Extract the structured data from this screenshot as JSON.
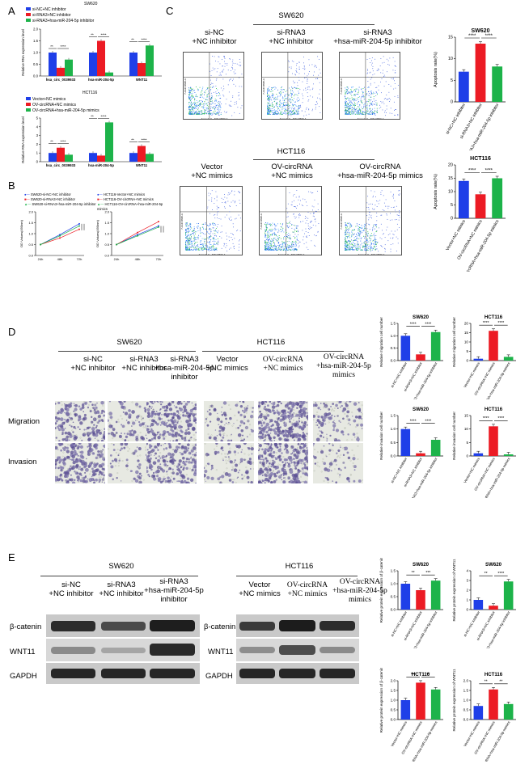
{
  "panels": {
    "A": "A",
    "B": "B",
    "C": "C",
    "D": "D",
    "E": "E"
  },
  "colors": {
    "blue": "#1f3fe8",
    "red": "#ec1b24",
    "green": "#1db34a"
  },
  "panelA": {
    "top_title": "SW620",
    "top_legend": [
      "si-NC+NC inhibitor",
      "si-RNA3+NC inhibitor",
      "si-RNA3+hsa-miR-204-5p inhibitor"
    ],
    "bottom_title": "HCT116",
    "bottom_legend": [
      "Vector+NC mimics",
      "OV-circRNA+NC mimics",
      "OV-circRNA+hsa-miR-204-5p mimics"
    ],
    "ylabel": "Relative RNA expression level",
    "categories": [
      "hsa_circ_0039933",
      "hsa-miR-204-5p",
      "WNT11"
    ]
  },
  "panelB": {
    "left_legend": [
      "SW620-si-NC+NC inhibitor",
      "SW620-si-RNA3+NC inhibitor",
      "SW620-si-RNA3+hsa-miR-204-5p inhibitor"
    ],
    "right_legend": [
      "HCT116-Vector+NC mimics",
      "HCT116-OV-circRNA+NC mimics",
      "HCT116-OV-circRNA+hsa-miR-204-5p mimics"
    ],
    "ylabel": "OD Values(490nm)",
    "x_left": [
      "24h",
      "48h",
      "72h"
    ],
    "x_right": [
      "24h",
      "48h",
      "72h"
    ]
  },
  "panelC": {
    "sw_title": "SW620",
    "hct_title": "HCT116",
    "sw_groups": [
      "si-NC\n+NC inhibitor",
      "si-RNA3\n+NC inhibitor",
      "si-RNA3\n+hsa-miR-204-5p inhibitor"
    ],
    "hct_groups": [
      "Vector\n+NC mimics",
      "OV-circRNA\n+NC mimics",
      "OV-circRNA\n+hsa-miR-204-5p mimics"
    ],
    "flow_xlabel": "Annexin V - APC R660-A",
    "flow_ylabel": "7-AAD R695-A"
  },
  "panelD": {
    "sw_title": "SW620",
    "hct_title": "HCT116",
    "sw_groups": [
      "si-NC\n+NC inhibitor",
      "si-RNA3\n+NC inhibitor",
      "si-RNA3\n+hsa-miR-204-5p\ninhibitor"
    ],
    "hct_groups": [
      "Vector\n+NC mimics",
      "OV-circRNA\n+NC mimics",
      "OV-circRNA\n+hsa-miR-204-5p\nmimics"
    ],
    "rows": [
      "Migration",
      "Invasion"
    ]
  },
  "panelE": {
    "sw_title": "SW620",
    "hct_title": "HCT116",
    "sw_groups": [
      "si-NC\n+NC inhibitor",
      "si-RNA3\n+NC inhibitor",
      "si-RNA3\n+hsa-miR-204-5p\ninhibitor"
    ],
    "hct_groups": [
      "Vector\n+NC mimics",
      "OV-circRNA\n+NC mimics",
      "OV-circRNA\n+hsa-miR-204-5p\nmimics"
    ],
    "blot_rows": [
      "β-catenin",
      "WNT11",
      "GAPDH"
    ]
  },
  "sig": {
    "s2": "**",
    "s3": "***",
    "s4": "****"
  },
  "chart_data": [
    {
      "type": "bar",
      "title": "SW620",
      "ylabel": "Apoptosis rate(%)",
      "categories": [
        "si-NC+NC inhibitor",
        "si-RNA3+NC inhibitor",
        "si-RNA3+hsa-miR-204-5p inhibitor"
      ],
      "values": [
        7,
        13.5,
        8.2
      ],
      "ylim": [
        0,
        15
      ],
      "yticks": [
        "0",
        "5",
        "10",
        "15"
      ]
    },
    {
      "type": "bar",
      "title": "HCT116",
      "ylabel": "Apoptosis rate(%)",
      "categories": [
        "Vector+NC mimics",
        "OV-circRNA+NC mimics",
        "OV-circRNA+hsa-miR-204-5p mimics"
      ],
      "values": [
        14,
        9,
        15
      ],
      "ylim": [
        0,
        20
      ],
      "yticks": [
        "0",
        "5",
        "10",
        "15",
        "20"
      ]
    },
    {
      "type": "bar",
      "title": "SW620",
      "ylabel": "Relative migration cell number",
      "categories": [
        "si-NC+NC inhibitor",
        "si-RNA3+NC inhibitor",
        "si-RNA3+hsa-miR-204-5p inhibitor"
      ],
      "values": [
        1.0,
        0.25,
        1.15
      ],
      "ylim": [
        0,
        1.5
      ],
      "yticks": [
        "0.0",
        "0.5",
        "1.0",
        "1.5"
      ]
    },
    {
      "type": "bar",
      "title": "HCT116",
      "ylabel": "Relative migration cell number",
      "categories": [
        "Vector+NC mimics",
        "OV-circRNA+NC mimics",
        "OV-circRNA+hsa-miR-204-5p mimics"
      ],
      "values": [
        1,
        16,
        2
      ],
      "ylim": [
        0,
        20
      ],
      "yticks": [
        "0",
        "5",
        "10",
        "15",
        "20"
      ]
    },
    {
      "type": "bar",
      "title": "SW620",
      "ylabel": "Relative invasion cell number",
      "categories": [
        "si-NC+NC inhibitor",
        "si-RNA3+NC inhibitor",
        "si-RNA3+hsa-miR-204-5p inhibitor"
      ],
      "values": [
        1.0,
        0.1,
        0.6
      ],
      "ylim": [
        0,
        1.5
      ],
      "yticks": [
        "0.0",
        "0.5",
        "1.0",
        "1.5"
      ]
    },
    {
      "type": "bar",
      "title": "HCT116",
      "ylabel": "Relative invasion cell number",
      "categories": [
        "Vector+NC mimics",
        "OV-circRNA+NC mimics",
        "OV-circRNA+hsa-miR-204-5p mimics"
      ],
      "values": [
        1,
        11,
        0.6
      ],
      "ylim": [
        0,
        15
      ],
      "yticks": [
        "0",
        "5",
        "10",
        "15"
      ]
    },
    {
      "type": "bar",
      "title": "SW620",
      "ylabel": "Relative protein expression of β-catenin",
      "categories": [
        "si-NC+NC inhibitor",
        "si-RNA3+NC inhibitor",
        "si-RNA3+hsa-miR-204-5p inhibitor"
      ],
      "values": [
        1.0,
        0.75,
        1.12
      ],
      "ylim": [
        0,
        1.5
      ],
      "yticks": [
        "0.0",
        "0.5",
        "1.0",
        "1.5"
      ]
    },
    {
      "type": "bar",
      "title": "SW620",
      "ylabel": "Relative protein expression of WNT11",
      "categories": [
        "si-NC+NC inhibitor",
        "si-RNA3+NC inhibitor",
        "si-RNA3+hsa-miR-204-5p inhibitor"
      ],
      "values": [
        1.0,
        0.4,
        2.9
      ],
      "ylim": [
        0,
        4
      ],
      "yticks": [
        "0",
        "1",
        "2",
        "3",
        "4"
      ]
    },
    {
      "type": "bar",
      "title": "HCT116",
      "ylabel": "Relative protein expression of β-catenin",
      "categories": [
        "Vector+NC mimics",
        "OV-circRNA+NC mimics",
        "OV-circRNA+hsa-miR-204-5p mimics"
      ],
      "values": [
        1.0,
        1.9,
        1.55
      ],
      "ylim": [
        0,
        2
      ],
      "yticks": [
        "0.0",
        "0.5",
        "1.0",
        "1.5",
        "2.0"
      ]
    },
    {
      "type": "bar",
      "title": "HCT116",
      "ylabel": "Relative protein expression of WNT11",
      "categories": [
        "Vector+NC mimics",
        "OV-circRNA+NC mimics",
        "OV-circRNA+hsa-miR-204-5p mimics"
      ],
      "values": [
        0.7,
        1.55,
        0.8
      ],
      "ylim": [
        0,
        2
      ],
      "yticks": [
        "0.0",
        "0.5",
        "1.0",
        "1.5",
        "2.0"
      ]
    },
    {
      "type": "bar",
      "title": "SW620",
      "ylabel": "Relative RNA expression level",
      "categories": [
        "hsa_circ_0039933",
        "hsa-miR-204-5p",
        "WNT11"
      ],
      "series": [
        {
          "name": "si-NC+NC inhibitor",
          "values": [
            1,
            1,
            1
          ]
        },
        {
          "name": "si-RNA3+NC inhibitor",
          "values": [
            0.35,
            1.5,
            0.55
          ]
        },
        {
          "name": "si-RNA3+hsa-miR-204-5p inhibitor",
          "values": [
            0.7,
            0.15,
            1.3
          ]
        }
      ],
      "ylim": [
        0,
        2
      ],
      "yticks": [
        "0.0",
        "0.5",
        "1.0",
        "1.5",
        "2.0"
      ]
    },
    {
      "type": "bar",
      "title": "HCT116",
      "ylabel": "Relative RNA expression level",
      "categories": [
        "hsa_circ_0039933",
        "hsa-miR-204-5p",
        "WNT11"
      ],
      "series": [
        {
          "name": "Vector+NC mimics",
          "values": [
            1,
            1,
            1
          ]
        },
        {
          "name": "OV-circRNA+NC mimics",
          "values": [
            1.6,
            0.7,
            1.8
          ]
        },
        {
          "name": "OV-circRNA+hsa-miR-204-5p mimics",
          "values": [
            0.8,
            4.5,
            0.9
          ]
        }
      ],
      "ylim": [
        0,
        5
      ],
      "yticks": [
        "0",
        "1",
        "2",
        "3",
        "4",
        "5"
      ]
    },
    {
      "type": "line",
      "ylabel": "OD Values(490nm)",
      "x": [
        "24h",
        "48h",
        "72h"
      ],
      "series": [
        {
          "name": "SW620-si-NC+NC inhibitor",
          "values": [
            0.5,
            0.95,
            1.45
          ]
        },
        {
          "name": "SW620-si-RNA3+NC inhibitor",
          "values": [
            0.5,
            0.8,
            1.2
          ]
        },
        {
          "name": "SW620-si-RNA3+hsa-miR-204-5p inhibitor",
          "values": [
            0.5,
            0.9,
            1.35
          ]
        }
      ],
      "ylim": [
        0,
        2
      ],
      "yticks": [
        "0.0",
        "0.5",
        "1.0",
        "1.5",
        "2.0"
      ]
    },
    {
      "type": "line",
      "ylabel": "OD Values(490nm)",
      "x": [
        "24h",
        "48h",
        "72h"
      ],
      "series": [
        {
          "name": "HCT116-Vector+NC mimics",
          "values": [
            0.5,
            0.95,
            1.35
          ]
        },
        {
          "name": "HCT116-OV-circRNA+NC mimics",
          "values": [
            0.5,
            1.05,
            1.55
          ]
        },
        {
          "name": "HCT116-OV-circRNA+hsa-miR-204-5p mimics",
          "values": [
            0.5,
            0.9,
            1.3
          ]
        }
      ],
      "ylim": [
        0,
        2
      ],
      "yticks": [
        "0.0",
        "0.5",
        "1.0",
        "1.5",
        "2.0"
      ]
    }
  ]
}
